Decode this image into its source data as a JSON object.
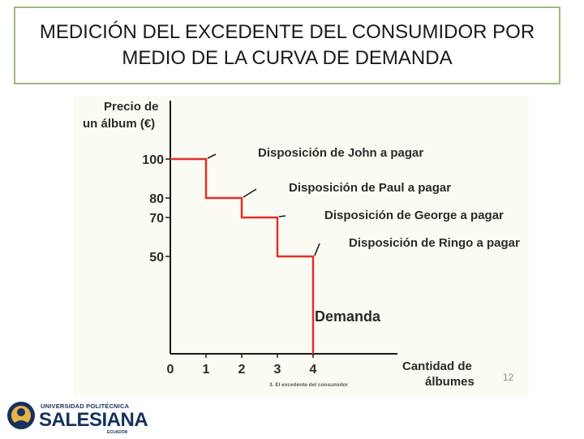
{
  "slide": {
    "title_line1": "MEDICIÓN DEL EXCEDENTE DEL CONSUMIDOR POR",
    "title_line2": "MEDIO DE LA CURVA DE DEMANDA",
    "page_number": "12",
    "caption": "3. El excedente del consumidor"
  },
  "logo": {
    "top_text": "UNIVERSIDAD POLITÉCNICA",
    "main_text": "SALESIANA",
    "sub_text": "ECUADOR"
  },
  "chart_data": {
    "type": "line",
    "ylabel_line1": "Precio de",
    "ylabel_line2": "un álbum (€)",
    "xlabel_line1": "Cantidad de",
    "xlabel_line2": "álbumes",
    "x_ticks": [
      "0",
      "1",
      "2",
      "3",
      "4"
    ],
    "y_ticks": [
      "100",
      "80",
      "70",
      "50"
    ],
    "series": [
      {
        "name": "Demanda",
        "steps": [
          {
            "x0": 0,
            "x1": 1,
            "price": 100
          },
          {
            "x0": 1,
            "x1": 2,
            "price": 80
          },
          {
            "x0": 2,
            "x1": 3,
            "price": 70
          },
          {
            "x0": 3,
            "x1": 4,
            "price": 50
          }
        ]
      }
    ],
    "annotations": [
      {
        "text": "Disposición de John a pagar",
        "x": 0.5,
        "y": 100
      },
      {
        "text": "Disposición de Paul a pagar",
        "x": 1.5,
        "y": 80
      },
      {
        "text": "Disposición de George a pagar",
        "x": 2.5,
        "y": 70
      },
      {
        "text": "Disposición de Ringo a pagar",
        "x": 3.5,
        "y": 50
      }
    ],
    "line_color": "#e0312a",
    "grid": false
  }
}
